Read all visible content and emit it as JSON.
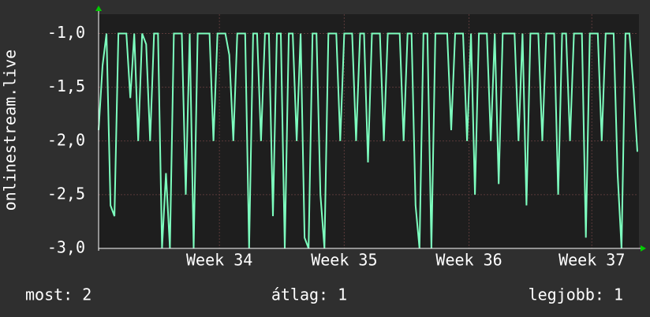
{
  "chart_data": {
    "type": "line",
    "y_label": "onlinestream.live",
    "color": "#7dffbf",
    "grid": true,
    "ylim": [
      -3.0,
      -0.82
    ],
    "yticks": [
      {
        "value": -1.0,
        "label": "-1,0"
      },
      {
        "value": -1.5,
        "label": "-1,5"
      },
      {
        "value": -2.0,
        "label": "-2,0"
      },
      {
        "value": -2.5,
        "label": "-2,5"
      },
      {
        "value": -3.0,
        "label": "-3,0"
      }
    ],
    "xlim": [
      0,
      136
    ],
    "xticks": [
      {
        "value": 30.5,
        "label": "Week 34"
      },
      {
        "value": 62,
        "label": "Week 35"
      },
      {
        "value": 93.5,
        "label": "Week 36"
      },
      {
        "value": 124.5,
        "label": "Week 37"
      }
    ],
    "values": [
      -1.9,
      -1.3,
      -1.0,
      -2.6,
      -2.7,
      -1.0,
      -1.0,
      -1.0,
      -1.6,
      -1.0,
      -2.0,
      -1.0,
      -1.1,
      -2.0,
      -1.0,
      -1.0,
      -3.0,
      -2.3,
      -3.0,
      -1.0,
      -1.0,
      -1.0,
      -2.5,
      -1.0,
      -3.0,
      -1.0,
      -1.0,
      -1.0,
      -1.0,
      -2.0,
      -1.0,
      -1.0,
      -1.0,
      -1.2,
      -2.0,
      -1.0,
      -1.0,
      -1.0,
      -3.0,
      -1.0,
      -1.0,
      -2.0,
      -1.0,
      -1.0,
      -2.7,
      -1.0,
      -1.0,
      -3.0,
      -1.0,
      -1.0,
      -2.0,
      -1.0,
      -2.9,
      -3.0,
      -1.0,
      -1.0,
      -2.5,
      -3.0,
      -1.0,
      -1.0,
      -1.0,
      -2.0,
      -1.0,
      -1.0,
      -1.0,
      -2.0,
      -1.0,
      -1.0,
      -2.2,
      -1.0,
      -1.0,
      -1.0,
      -2.0,
      -1.0,
      -1.0,
      -1.0,
      -1.0,
      -2.0,
      -1.0,
      -1.0,
      -2.6,
      -3.0,
      -1.0,
      -1.0,
      -3.0,
      -1.0,
      -1.0,
      -1.0,
      -1.0,
      -1.9,
      -1.0,
      -1.0,
      -1.0,
      -2.0,
      -1.0,
      -2.5,
      -1.0,
      -1.0,
      -1.0,
      -2.0,
      -1.0,
      -2.4,
      -1.0,
      -1.0,
      -1.0,
      -1.0,
      -2.0,
      -1.0,
      -2.6,
      -1.0,
      -1.0,
      -1.0,
      -2.0,
      -1.0,
      -1.0,
      -1.0,
      -2.5,
      -1.0,
      -1.0,
      -2.0,
      -1.0,
      -1.0,
      -1.0,
      -2.9,
      -1.0,
      -1.0,
      -1.0,
      -2.0,
      -1.0,
      -1.0,
      -1.0,
      -2.3,
      -3.0,
      -1.0,
      -1.0,
      -1.5,
      -2.1
    ],
    "footer": {
      "current": "most: 2",
      "average": "átlag: 1",
      "best": "legjobb: 1"
    }
  }
}
